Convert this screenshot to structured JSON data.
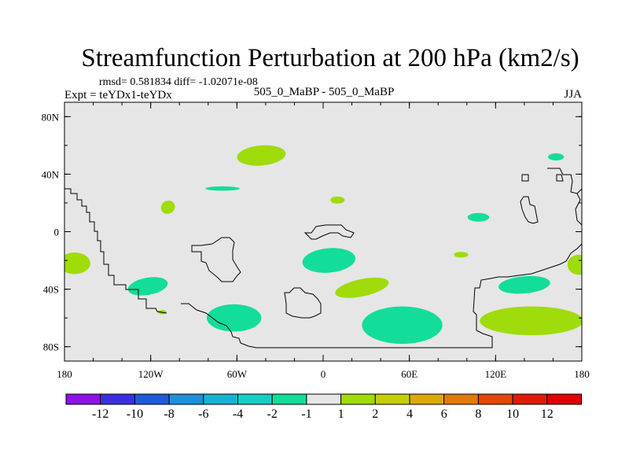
{
  "chart_data": {
    "type": "contour-map",
    "title": "Streamfunction Perturbation at 200 hPa (km2/s)",
    "stats_text": "rmsd= 0.581834 diff= -1.02071e-08",
    "left_label": "Expt = teYDx1-teYDx",
    "center_label": "505_0_MaBP - 505_0_MaBP",
    "right_label": "JJA",
    "x_ticks": [
      "180",
      "120W",
      "60W",
      "0",
      "60E",
      "120E",
      "180"
    ],
    "y_ticks": [
      "80N",
      "40N",
      "0",
      "40S",
      "80S"
    ],
    "lon_range": [
      -180,
      180
    ],
    "lat_range": [
      -90,
      90
    ],
    "colorbar": {
      "labels": [
        "-12",
        "-10",
        "-8",
        "-6",
        "-4",
        "-2",
        "-1",
        "1",
        "2",
        "4",
        "6",
        "8",
        "10",
        "12"
      ],
      "colors": [
        "#8a13e6",
        "#3c2fe0",
        "#1e5ad6",
        "#1e8fd9",
        "#18b3d0",
        "#14cec6",
        "#12dd9a",
        "#e6e6e6",
        "#9fdc0a",
        "#c4cf0a",
        "#dca90a",
        "#e07a0a",
        "#e0480a",
        "#e01a0a",
        "#e00000"
      ]
    },
    "anomalies": [
      {
        "label": "-1",
        "lon": -122,
        "lat": -38,
        "rx": 14,
        "ry": 6,
        "rot": -10
      },
      {
        "label": "-1",
        "lon": -62,
        "lat": -60,
        "rx": 19,
        "ry": 9.5,
        "rot": 0
      },
      {
        "label": "-1",
        "lon": -70,
        "lat": 30,
        "rx": 12,
        "ry": 1.5,
        "rot": 0
      },
      {
        "label": "-1",
        "lon": 4,
        "lat": -20,
        "rx": 18.5,
        "ry": 8.5,
        "rot": -5
      },
      {
        "label": "-1",
        "lon": 55,
        "lat": -65,
        "rx": 28,
        "ry": 13,
        "rot": 0
      },
      {
        "label": "-1",
        "lon": 108,
        "lat": 10,
        "rx": 7.5,
        "ry": 3,
        "rot": 0
      },
      {
        "label": "-1",
        "lon": 140,
        "lat": -37,
        "rx": 18,
        "ry": 6,
        "rot": -5
      },
      {
        "label": "-1",
        "lon": 162,
        "lat": 52,
        "rx": 5.5,
        "ry": 2.5,
        "rot": 0
      },
      {
        "label": "1",
        "lon": -43,
        "lat": 53,
        "rx": 17,
        "ry": 7,
        "rot": -5
      },
      {
        "label": "1",
        "lon": -108,
        "lat": 17,
        "rx": 5,
        "ry": 4.5,
        "rot": -30
      },
      {
        "label": "1",
        "lon": 10,
        "lat": 22,
        "rx": 5,
        "ry": 2.5,
        "rot": 0
      },
      {
        "label": "1",
        "lon": -173,
        "lat": -22,
        "rx": 11,
        "ry": 7.5,
        "rot": 0
      },
      {
        "label": "1",
        "lon": 27,
        "lat": -39,
        "rx": 19,
        "ry": 6,
        "rot": -12
      },
      {
        "label": "1",
        "lon": 96,
        "lat": -16,
        "rx": 5,
        "ry": 2,
        "rot": 0
      },
      {
        "label": "1",
        "lon": 145,
        "lat": -62,
        "rx": 36,
        "ry": 10,
        "rot": 0
      },
      {
        "label": "1",
        "lon": 178,
        "lat": -23,
        "rx": 8,
        "ry": 7,
        "rot": 0
      },
      {
        "label": "1",
        "lon": -112,
        "lat": -56,
        "rx": 3,
        "ry": 1.5,
        "rot": 0
      }
    ]
  }
}
